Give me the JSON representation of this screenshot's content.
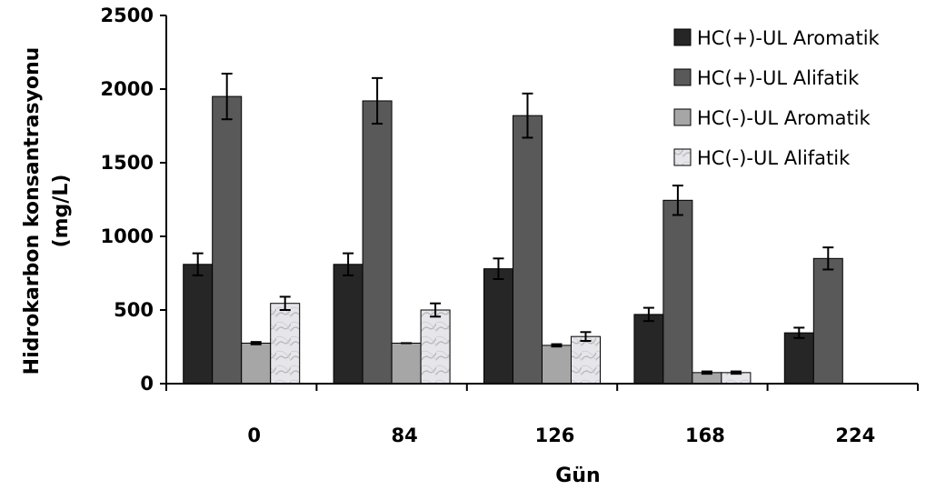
{
  "chart_data": {
    "type": "bar",
    "title": "",
    "xlabel": "Gün",
    "ylabel_line1": "Hidrokarbon konsantrasyonu",
    "ylabel_line2": "(mg/L)",
    "ylim": [
      0,
      2500
    ],
    "yticks": [
      "0",
      "500",
      "1000",
      "1500",
      "2000",
      "2500"
    ],
    "categories": [
      "0",
      "84",
      "126",
      "168",
      "224"
    ],
    "legend_position": "top-right",
    "grid": false,
    "series": [
      {
        "name": "HC(+)-UL Aromatik",
        "color": "#262626",
        "pattern": "solid",
        "values": [
          810,
          810,
          780,
          470,
          345
        ],
        "errors": [
          75,
          75,
          70,
          45,
          35
        ]
      },
      {
        "name": "HC(+)-UL Alifatik",
        "color": "#595959",
        "pattern": "solid",
        "values": [
          1950,
          1920,
          1820,
          1245,
          850
        ],
        "errors": [
          155,
          155,
          150,
          100,
          75
        ]
      },
      {
        "name": "HC(-)-UL Aromatik",
        "color": "#a6a6a6",
        "pattern": "solid",
        "values": [
          275,
          275,
          260,
          75,
          0
        ],
        "errors": [
          8,
          0,
          8,
          8,
          0
        ]
      },
      {
        "name": "HC(-)-UL Alifatik",
        "color": "#e3e3e6",
        "pattern": "marble",
        "values": [
          545,
          500,
          320,
          75,
          0
        ],
        "errors": [
          45,
          45,
          30,
          8,
          0
        ]
      }
    ]
  }
}
